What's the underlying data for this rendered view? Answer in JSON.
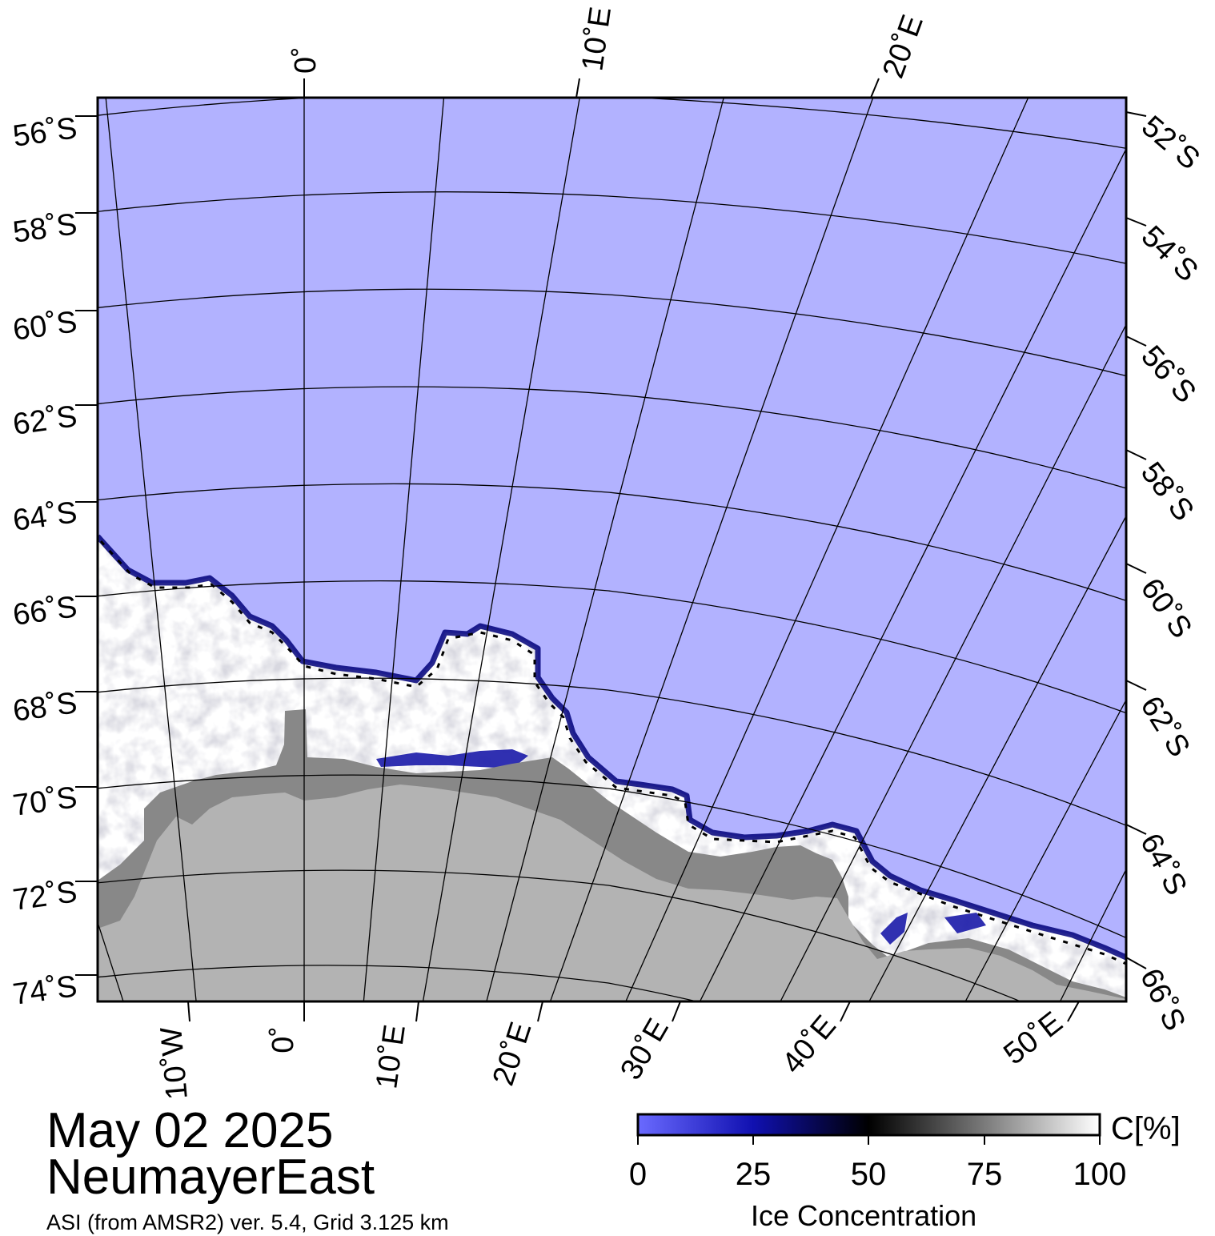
{
  "map": {
    "date": "May 02 2025",
    "region": "NeumayerEast",
    "source": "ASI (from AMSR2) ver. 5.4,  Grid 3.125 km",
    "colors": {
      "open_water": "#b2b2ff",
      "ice_high": "#ffffff",
      "ice_low": "#00007a",
      "land": "#b3b3b3",
      "ice_shelf": "#888888",
      "graticule": "#000000"
    },
    "top_meridian_labels": [
      "0˚",
      "10˚E",
      "20˚E"
    ],
    "bottom_meridian_labels": [
      "10˚W",
      "0˚",
      "10˚E",
      "20˚E",
      "30˚E",
      "40˚E",
      "50˚E"
    ],
    "left_parallel_labels": [
      "56˚S",
      "58˚S",
      "60˚S",
      "62˚S",
      "64˚S",
      "66˚S",
      "68˚S",
      "70˚S",
      "72˚S",
      "74˚S"
    ],
    "right_parallel_labels": [
      "52˚S",
      "54˚S",
      "56˚S",
      "58˚S",
      "60˚S",
      "62˚S",
      "64˚S",
      "66˚S"
    ]
  },
  "legend": {
    "title": "Ice Concentration",
    "unit": "C[%]",
    "ticks": [
      "0",
      "25",
      "50",
      "75",
      "100"
    ],
    "range": [
      0,
      100
    ]
  }
}
